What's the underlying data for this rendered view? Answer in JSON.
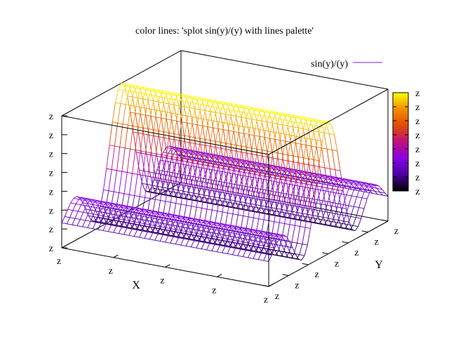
{
  "chart_data": {
    "type": "surface",
    "title": "color lines: 'splot sin(y)/(y) with lines palette'",
    "function": "sin(y)/(y)",
    "style": "wireframe lines colored by palette",
    "legend": {
      "label": "sin(y)/(y)",
      "position": "top-right",
      "line_color": "#7b1fe8"
    },
    "xlabel": "X",
    "ylabel": "Y",
    "zlabel": "",
    "x_tick_labels": [
      "z",
      "z",
      "z",
      "z",
      "z"
    ],
    "y_tick_labels": [
      "z",
      "z",
      "z",
      "z",
      "z",
      "z",
      "z"
    ],
    "z_tick_labels": [
      "z",
      "z",
      "z",
      "z",
      "z",
      "z",
      "z",
      "z"
    ],
    "colorbox_tick_labels": [
      "z",
      "z",
      "z",
      "z",
      "z",
      "z",
      "z",
      "z"
    ],
    "x_range": [
      -10,
      10
    ],
    "y_range": [
      -10,
      10
    ],
    "z_range": [
      -0.3,
      1.0
    ],
    "grid": false,
    "colorbox": {
      "position": "right",
      "palette": [
        "#000000",
        "#4a00a0",
        "#8a00e6",
        "#c0107a",
        "#e04a00",
        "#f09000",
        "#ffff00"
      ]
    }
  }
}
